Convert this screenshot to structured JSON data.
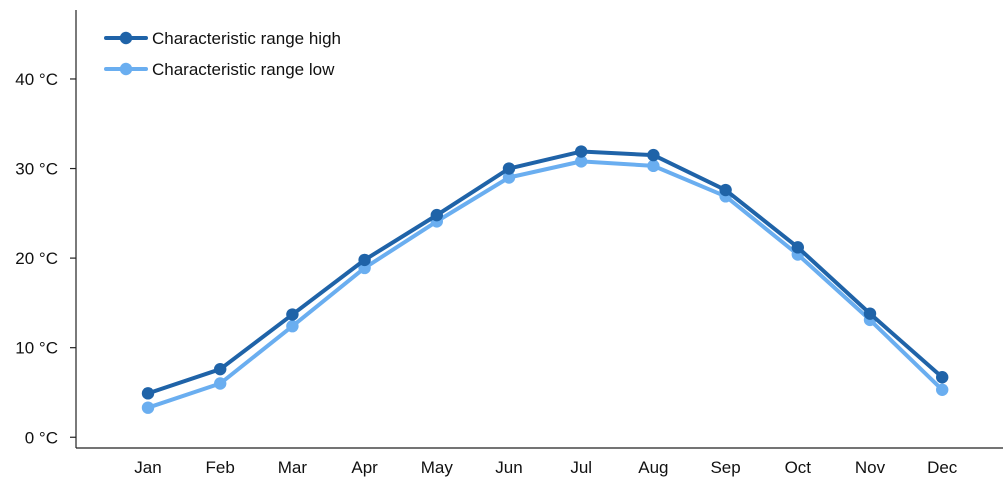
{
  "chart_data": {
    "type": "line",
    "title": "",
    "xlabel": "",
    "ylabel": "",
    "categories": [
      "Jan",
      "Feb",
      "Mar",
      "Apr",
      "May",
      "Jun",
      "Jul",
      "Aug",
      "Sep",
      "Oct",
      "Nov",
      "Dec"
    ],
    "y_ticks": [
      {
        "value": 0,
        "label": "0 °C"
      },
      {
        "value": 10,
        "label": "10 °C"
      },
      {
        "value": 20,
        "label": "20 °C"
      },
      {
        "value": 30,
        "label": "30 °C"
      },
      {
        "value": 40,
        "label": "40 °C"
      }
    ],
    "ylim": [
      -1.2,
      47.7
    ],
    "grid": false,
    "legend_position": "top-left",
    "series": [
      {
        "name": "Characteristic range high",
        "color": "#1f63a8",
        "values": [
          4.9,
          7.6,
          13.7,
          19.8,
          24.8,
          30.0,
          31.9,
          31.5,
          27.6,
          21.2,
          13.8,
          6.7
        ]
      },
      {
        "name": "Characteristic range low",
        "color": "#6aaef0",
        "values": [
          3.3,
          6.0,
          12.4,
          18.9,
          24.1,
          29.0,
          30.8,
          30.3,
          26.9,
          20.4,
          13.1,
          5.3
        ]
      }
    ]
  }
}
